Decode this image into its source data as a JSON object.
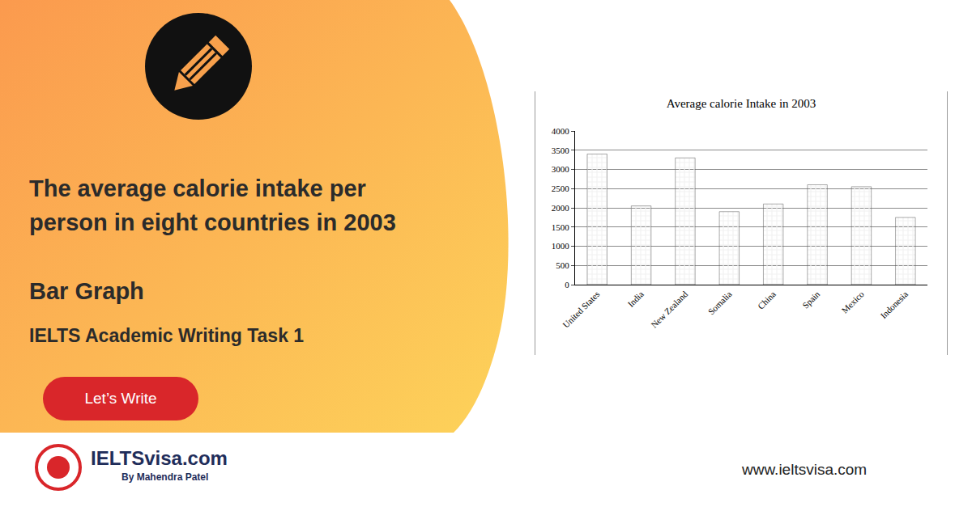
{
  "chart_data": {
    "type": "bar",
    "title": "Average calorie Intake in 2003",
    "categories": [
      "United States",
      "India",
      "New Zealand",
      "Somalia",
      "China",
      "Spain",
      "Mexico",
      "Indonesia"
    ],
    "values": [
      3400,
      2050,
      3300,
      1900,
      2100,
      2600,
      2550,
      1750
    ],
    "color": "#8c8c8c",
    "ylim": [
      0,
      4000
    ],
    "yticks": [
      0,
      500,
      1000,
      1500,
      2000,
      2500,
      3000,
      3500,
      4000
    ],
    "grid": true
  },
  "page": {
    "heading": "The average calorie intake per person in eight countries in 2003",
    "subheading": "Bar Graph",
    "task": "IELTS Academic Writing Task 1",
    "button": "Let’s Write",
    "logo": "IELTSvisa.com",
    "logo_sub": "By Mahendra Patel",
    "url": "www.ieltsvisa.com"
  }
}
